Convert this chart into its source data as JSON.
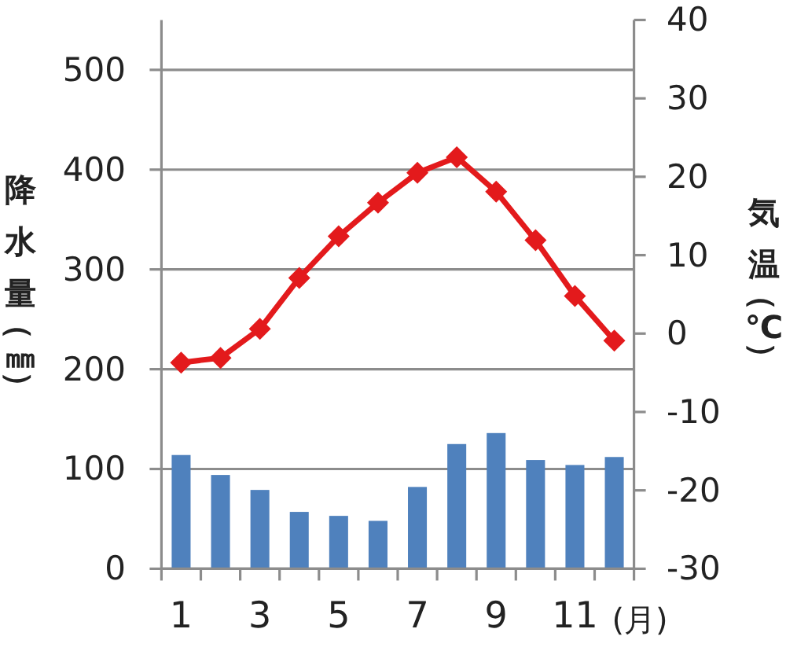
{
  "chart_data": {
    "type": "bar",
    "xlabel": "(月)",
    "ylabel": "降水量（㎜）",
    "y2label": "気温（℃）",
    "categories": [
      "1",
      null,
      "3",
      null,
      "5",
      null,
      "7",
      null,
      "9",
      null,
      "11",
      null
    ],
    "series": [
      {
        "color": "#4f81bd",
        "values": [
          114,
          94,
          79,
          57,
          53,
          48,
          82,
          125,
          136,
          109,
          104,
          112
        ]
      },
      {
        "type": "line",
        "axis": "y2",
        "color": "#e31a1c",
        "values": [
          -3.7,
          -3.1,
          0.6,
          7.1,
          12.4,
          16.7,
          20.5,
          22.5,
          18.1,
          11.9,
          4.8,
          -0.9
        ]
      }
    ],
    "ylim": [
      0,
      550
    ],
    "yticks": [
      0,
      100,
      200,
      300,
      400,
      500
    ],
    "y2lim": [
      -30,
      40
    ],
    "y2ticks": [
      -30,
      -20,
      -10,
      0,
      10,
      20,
      30,
      40
    ],
    "grid": "y",
    "marker": "diamond",
    "line_style": "solid"
  }
}
